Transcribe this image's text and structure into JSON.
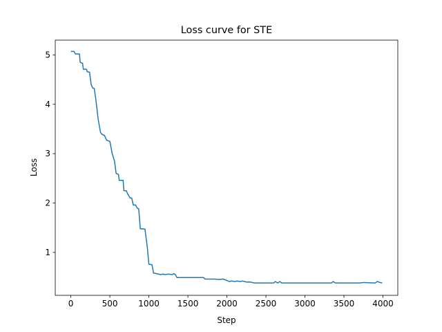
{
  "chart_data": {
    "type": "line",
    "title": "Loss curve for STE",
    "x_label": "Step",
    "y_label": "Loss",
    "x": [
      0,
      40,
      60,
      110,
      120,
      150,
      160,
      200,
      210,
      240,
      260,
      280,
      300,
      320,
      350,
      380,
      400,
      430,
      460,
      500,
      530,
      560,
      580,
      610,
      620,
      670,
      680,
      710,
      730,
      760,
      780,
      800,
      830,
      850,
      870,
      890,
      950,
      980,
      1000,
      1040,
      1060,
      1100,
      1150,
      1180,
      1200,
      1250,
      1300,
      1320,
      1340,
      1360,
      1700,
      1720,
      1850,
      1900,
      1950,
      2000,
      2030,
      2060,
      2100,
      2130,
      2170,
      2200,
      2250,
      2300,
      2350,
      2600,
      2620,
      2650,
      2680,
      2700,
      3340,
      3360,
      3390,
      3700,
      3750,
      3900,
      3930,
      3960,
      3990
    ],
    "series": [
      {
        "name": "Loss",
        "color": "#1f77b4",
        "values": [
          5.07,
          5.07,
          5.02,
          5.02,
          4.85,
          4.83,
          4.71,
          4.71,
          4.66,
          4.65,
          4.4,
          4.33,
          4.32,
          4.1,
          3.7,
          3.43,
          3.39,
          3.37,
          3.27,
          3.25,
          3.0,
          2.85,
          2.6,
          2.58,
          2.46,
          2.46,
          2.25,
          2.25,
          2.18,
          2.1,
          2.1,
          1.96,
          1.96,
          1.9,
          1.88,
          1.48,
          1.47,
          1.1,
          0.76,
          0.75,
          0.58,
          0.57,
          0.55,
          0.56,
          0.55,
          0.56,
          0.55,
          0.57,
          0.55,
          0.49,
          0.49,
          0.46,
          0.46,
          0.45,
          0.46,
          0.43,
          0.41,
          0.42,
          0.41,
          0.42,
          0.41,
          0.42,
          0.4,
          0.4,
          0.38,
          0.38,
          0.41,
          0.38,
          0.41,
          0.38,
          0.38,
          0.41,
          0.38,
          0.38,
          0.39,
          0.38,
          0.41,
          0.39,
          0.38
        ]
      }
    ],
    "xlim": [
      -200,
      4190
    ],
    "ylim": [
      0.13,
      5.3
    ],
    "xticks": [
      0,
      500,
      1000,
      1500,
      2000,
      2500,
      3000,
      3500,
      4000
    ],
    "yticks": [
      1,
      2,
      3,
      4,
      5
    ]
  }
}
